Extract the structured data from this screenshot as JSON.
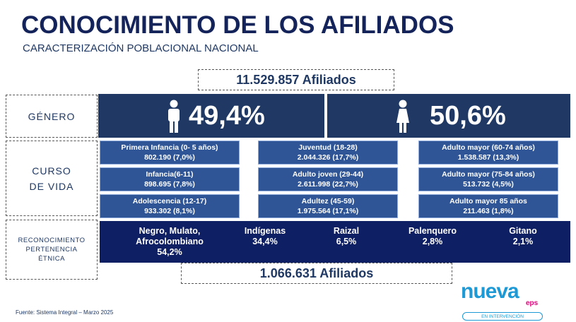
{
  "header": {
    "title": "CONOCIMIENTO DE LOS AFILIADOS",
    "subtitle": "CARACTERIZACIÓN POBLACIONAL NACIONAL"
  },
  "total": "11.529.857 Afiliados",
  "gender": {
    "label": "GÉNERO",
    "male": "49,4%",
    "female": "50,6%"
  },
  "life_course": {
    "label": [
      "CURSO",
      "DE VIDA"
    ],
    "groups": [
      {
        "name": "Primera Infancia (0- 5 años)",
        "value": "802.190 (7,0%)"
      },
      {
        "name": "Infancia(6-11)",
        "value": "898.695 (7,8%)"
      },
      {
        "name": "Adolescencia (12-17)",
        "value": "933.302 (8,1%)"
      },
      {
        "name": "Juventud (18-28)",
        "value": "2.044.326 (17,7%)"
      },
      {
        "name": "Adulto joven (29-44)",
        "value": "2.611.998 (22,7%)"
      },
      {
        "name": "Adultez  (45-59)",
        "value": "1.975.564 (17,1%)"
      },
      {
        "name": "Adulto mayor (60-74 años)",
        "value": "1.538.587 (13,3%)"
      },
      {
        "name": "Adulto mayor (75-84 años)",
        "value": "513.732 (4,5%)"
      },
      {
        "name": "Adulto mayor 85 años",
        "value": "211.463 (1,8%)"
      }
    ]
  },
  "ethnicity": {
    "label": [
      "RECONOCIMIENTO",
      "PERTENENCIA",
      "ÉTNICA"
    ],
    "groups": [
      {
        "name": [
          "Negro, Mulato,",
          "Afrocolombiano"
        ],
        "value": "54,2%"
      },
      {
        "name": [
          "Indígenas"
        ],
        "value": "34,4%"
      },
      {
        "name": [
          "Raizal"
        ],
        "value": "6,5%"
      },
      {
        "name": [
          "Palenquero"
        ],
        "value": "2,8%"
      },
      {
        "name": [
          "Gitano"
        ],
        "value": "2,1%"
      }
    ],
    "total": "1.066.631 Afiliados"
  },
  "footer": {
    "source": "Fuente: Sistema Integral – Marzo 2025"
  },
  "logo": {
    "name": "nueva",
    "sub": "eps",
    "status": "EN INTERVENCIÓN"
  }
}
